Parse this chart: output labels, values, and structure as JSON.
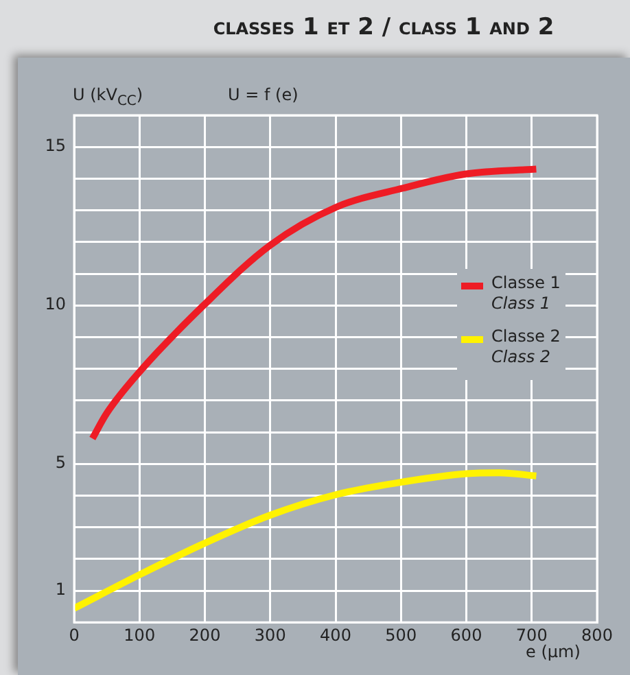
{
  "chart_data": {
    "type": "line",
    "title": "classes 1 et 2 / class 1 and 2",
    "ylabel": "U (kV$_{CC}$)",
    "xlabel": "e (µm)",
    "annotations": [
      "U = f (e)"
    ],
    "xlim": [
      0,
      800
    ],
    "xticks": [
      0,
      100,
      200,
      300,
      400,
      500,
      600,
      700,
      800
    ],
    "ylim": [
      0,
      16
    ],
    "yticks": [
      {
        "value": 0,
        "label": null
      },
      1,
      {
        "value": 2,
        "label": null
      },
      {
        "value": 3,
        "label": null
      },
      {
        "value": 4,
        "label": null
      },
      5,
      {
        "value": 6,
        "label": null
      },
      {
        "value": 7,
        "label": null
      },
      {
        "value": 8,
        "label": null
      },
      {
        "value": 9,
        "label": null
      },
      10,
      {
        "value": 11,
        "label": null
      },
      {
        "value": 12,
        "label": null
      },
      {
        "value": 13,
        "label": null
      },
      {
        "value": 14,
        "label": null
      },
      15,
      {
        "value": 16,
        "label": null
      }
    ],
    "grid": true,
    "legend": "right",
    "marker": "none",
    "line_style": "solid",
    "series": [
      {
        "name": "Classe 1\nClass 1",
        "color": "#ee1c25",
        "x": [
          28,
          50,
          100,
          198,
          300,
          401,
          503,
          600,
          707
        ],
        "values": [
          5.8,
          6.6,
          7.9,
          10.0,
          11.9,
          13.1,
          13.7,
          14.15,
          14.3
        ]
      },
      {
        "name": "Classe 2\nClass 2",
        "color": "#fff200",
        "x": [
          0,
          100,
          198,
          300,
          401,
          503,
          600,
          650,
          707
        ],
        "values": [
          0.44,
          1.5,
          2.48,
          3.38,
          4.03,
          4.43,
          4.69,
          4.72,
          4.62
        ]
      }
    ]
  }
}
